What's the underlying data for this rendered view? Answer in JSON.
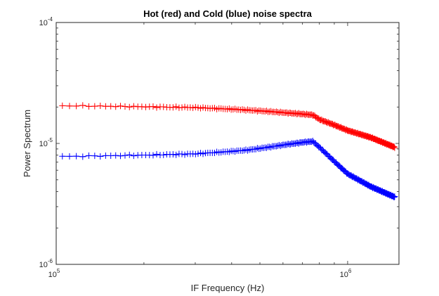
{
  "chart_data": {
    "type": "line",
    "title": "Hot (red) and Cold (blue) noise spectra",
    "xlabel": "IF Frequency (Hz)",
    "ylabel": "Power Spectrum",
    "xscale": "log",
    "yscale": "log",
    "xlim": [
      100000,
      1500000
    ],
    "ylim": [
      1e-06,
      0.0001
    ],
    "x_ticks": [
      {
        "value": 100000,
        "base": "10",
        "exp": "5"
      },
      {
        "value": 1000000,
        "base": "10",
        "exp": "6"
      }
    ],
    "y_ticks": [
      {
        "value": 1e-06,
        "base": "10",
        "exp": "-6"
      },
      {
        "value": 1e-05,
        "base": "10",
        "exp": "-5"
      },
      {
        "value": 0.0001,
        "base": "10",
        "exp": "-4"
      }
    ],
    "marker": "+",
    "series": [
      {
        "name": "Hot",
        "color": "#ff0000",
        "x": [
          105000,
          150000,
          200000,
          300000,
          400000,
          500000,
          600000,
          700000,
          760000,
          800000,
          900000,
          1000000,
          1200000,
          1450000
        ],
        "y": [
          2.05e-05,
          2.03e-05,
          2.01e-05,
          1.98e-05,
          1.92e-05,
          1.86e-05,
          1.8e-05,
          1.75e-05,
          1.72e-05,
          1.58e-05,
          1.42e-05,
          1.28e-05,
          1.12e-05,
          9.3e-06
        ]
      },
      {
        "name": "Cold",
        "color": "#0000ff",
        "x": [
          105000,
          150000,
          200000,
          250000,
          300000,
          350000,
          400000,
          450000,
          500000,
          600000,
          700000,
          760000,
          800000,
          900000,
          1000000,
          1200000,
          1450000
        ],
        "y": [
          7.8e-06,
          7.9e-06,
          8e-06,
          8.1e-06,
          8.2e-06,
          8.4e-06,
          8.6e-06,
          8.8e-06,
          9.1e-06,
          9.7e-06,
          1.02e-05,
          1.04e-05,
          9.3e-06,
          7.1e-06,
          5.6e-06,
          4.4e-06,
          3.6e-06
        ]
      }
    ]
  }
}
